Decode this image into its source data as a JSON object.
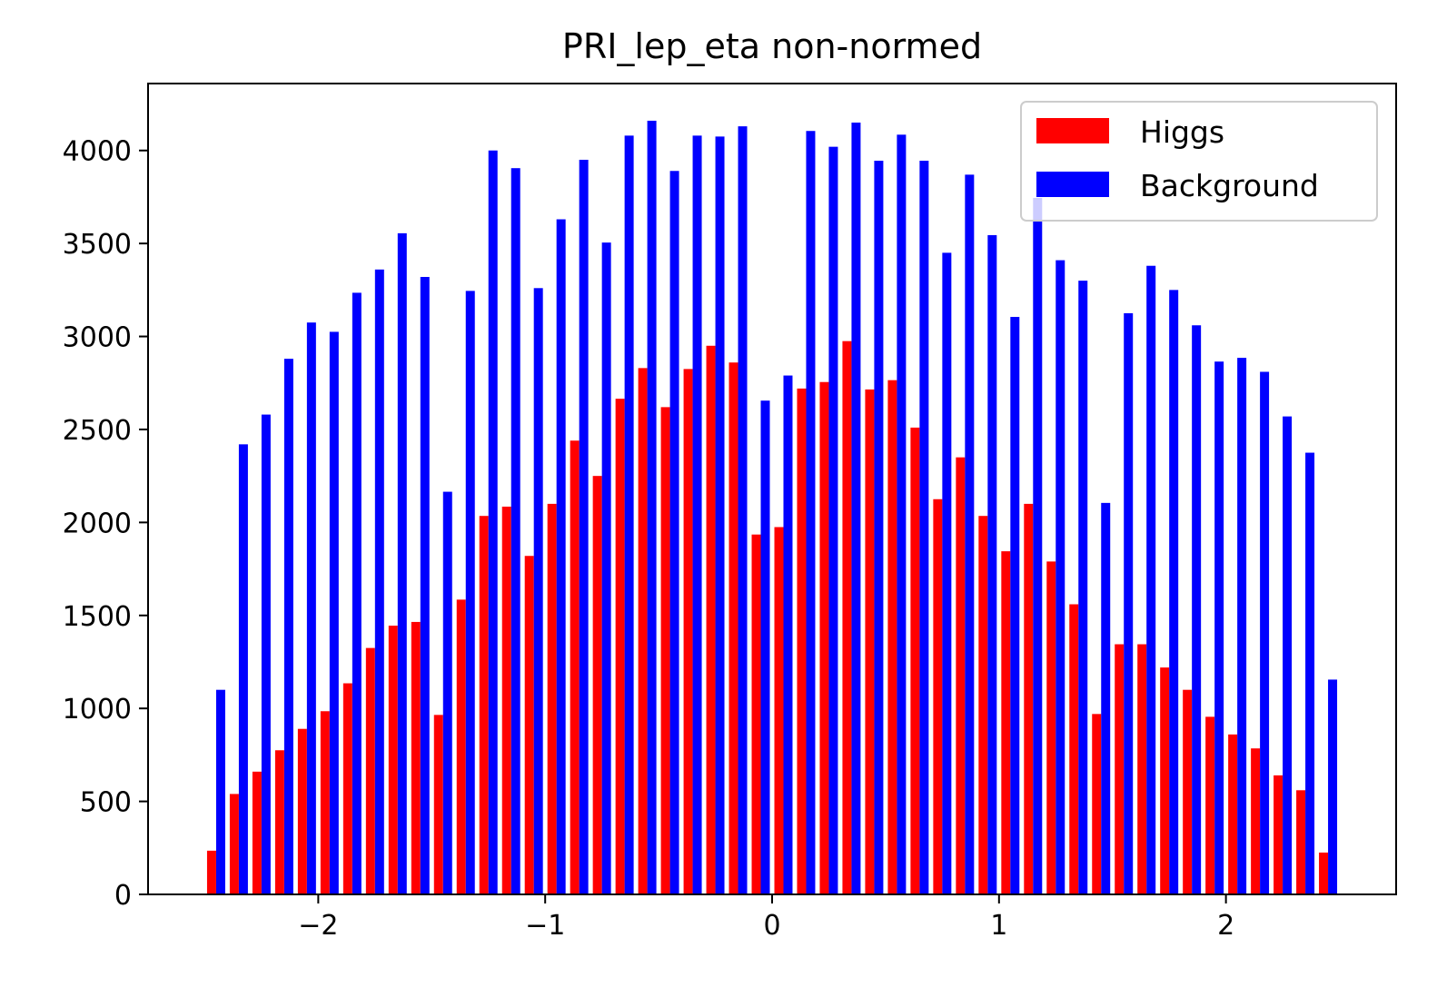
{
  "chart_data": {
    "type": "bar",
    "title": "PRI_lep_eta non-normed",
    "xlabel": "",
    "ylabel": "",
    "xlim": [
      -2.75,
      2.75
    ],
    "ylim": [
      0,
      4360
    ],
    "x_ticks": [
      -2,
      -1,
      0,
      1,
      2
    ],
    "x_tick_labels": [
      "−2",
      "−1",
      "0",
      "1",
      "2"
    ],
    "y_ticks": [
      0,
      500,
      1000,
      1500,
      2000,
      2500,
      3000,
      3500,
      4000
    ],
    "y_tick_labels": [
      "0",
      "500",
      "1000",
      "1500",
      "2000",
      "2500",
      "3000",
      "3500",
      "4000"
    ],
    "bin_start": -2.5,
    "bin_width": 0.1,
    "grid": false,
    "legend_position": "top-right",
    "series": [
      {
        "name": "Higgs",
        "color": "#ff0000",
        "values": [
          235,
          540,
          660,
          775,
          890,
          985,
          1135,
          1325,
          1445,
          1465,
          965,
          1585,
          2035,
          2085,
          1820,
          2100,
          2440,
          2250,
          2665,
          2830,
          2620,
          2825,
          2950,
          2860,
          1935,
          1975,
          2720,
          2755,
          2975,
          2715,
          2765,
          2510,
          2125,
          2350,
          2035,
          1845,
          2100,
          1790,
          1560,
          970,
          1345,
          1345,
          1220,
          1100,
          955,
          860,
          785,
          640,
          560,
          225
        ]
      },
      {
        "name": "Background",
        "color": "#0000ff",
        "values": [
          1100,
          2420,
          2580,
          2880,
          3075,
          3025,
          3235,
          3360,
          3555,
          3320,
          2165,
          3245,
          4000,
          3905,
          3260,
          3630,
          3950,
          3505,
          4080,
          4160,
          3890,
          4080,
          4075,
          4130,
          2655,
          2790,
          4105,
          4020,
          4150,
          3945,
          4085,
          3945,
          3450,
          3870,
          3545,
          3105,
          3745,
          3410,
          3300,
          2105,
          3125,
          3380,
          3250,
          3060,
          2865,
          2885,
          2810,
          2570,
          2375,
          1155
        ]
      }
    ]
  }
}
